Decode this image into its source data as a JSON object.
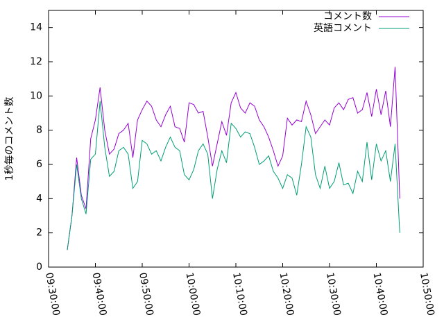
{
  "chart_data": {
    "type": "line",
    "ylabel": "1秒毎のコメント数",
    "x": [
      "09:34:00",
      "09:35:00",
      "09:36:00",
      "09:37:00",
      "09:38:00",
      "09:39:00",
      "09:40:00",
      "09:41:00",
      "09:42:00",
      "09:43:00",
      "09:44:00",
      "09:45:00",
      "09:46:00",
      "09:47:00",
      "09:48:00",
      "09:49:00",
      "09:50:00",
      "09:51:00",
      "09:52:00",
      "09:53:00",
      "09:54:00",
      "09:55:00",
      "09:56:00",
      "09:57:00",
      "09:58:00",
      "09:59:00",
      "10:00:00",
      "10:01:00",
      "10:02:00",
      "10:03:00",
      "10:04:00",
      "10:05:00",
      "10:06:00",
      "10:07:00",
      "10:08:00",
      "10:09:00",
      "10:10:00",
      "10:11:00",
      "10:12:00",
      "10:13:00",
      "10:14:00",
      "10:15:00",
      "10:16:00",
      "10:17:00",
      "10:18:00",
      "10:19:00",
      "10:20:00",
      "10:21:00",
      "10:22:00",
      "10:23:00",
      "10:24:00",
      "10:25:00",
      "10:26:00",
      "10:27:00",
      "10:28:00",
      "10:29:00",
      "10:30:00",
      "10:31:00",
      "10:32:00",
      "10:33:00",
      "10:34:00",
      "10:35:00",
      "10:36:00",
      "10:37:00",
      "10:38:00",
      "10:39:00",
      "10:40:00",
      "10:41:00",
      "10:42:00",
      "10:43:00",
      "10:44:00",
      "10:45:00"
    ],
    "series": [
      {
        "name": "コメント数",
        "color": "#9400d3",
        "values": [
          1.0,
          3.0,
          6.4,
          4.2,
          3.4,
          7.5,
          8.6,
          10.5,
          8.0,
          6.6,
          6.9,
          7.8,
          8.0,
          8.4,
          6.4,
          8.6,
          9.2,
          9.7,
          9.4,
          8.6,
          8.2,
          8.9,
          9.4,
          8.2,
          8.1,
          7.3,
          9.6,
          9.5,
          9.0,
          9.1,
          7.6,
          5.9,
          7.2,
          8.5,
          7.7,
          9.6,
          10.2,
          9.3,
          9.0,
          9.6,
          9.4,
          8.6,
          8.2,
          7.6,
          6.8,
          5.9,
          6.5,
          8.7,
          8.3,
          8.6,
          8.5,
          9.7,
          8.9,
          7.8,
          8.2,
          8.6,
          8.3,
          9.3,
          9.6,
          9.2,
          9.8,
          9.9,
          9.0,
          9.2,
          10.2,
          8.8,
          10.4,
          8.9,
          10.3,
          8.2,
          11.7,
          4.0
        ]
      },
      {
        "name": "英語コメント",
        "color": "#009e73",
        "values": [
          1.0,
          3.0,
          6.0,
          4.0,
          3.1,
          6.3,
          6.6,
          9.7,
          7.0,
          5.3,
          5.6,
          6.8,
          7.0,
          6.6,
          4.6,
          5.0,
          7.4,
          7.2,
          6.6,
          6.8,
          6.2,
          7.0,
          7.6,
          7.0,
          6.8,
          5.4,
          5.1,
          5.7,
          6.8,
          7.2,
          6.6,
          4.0,
          5.7,
          6.8,
          6.1,
          8.4,
          8.1,
          7.6,
          7.9,
          7.8,
          7.0,
          6.0,
          6.2,
          6.5,
          5.6,
          5.2,
          4.6,
          5.4,
          5.2,
          4.2,
          6.0,
          8.2,
          7.6,
          5.4,
          4.6,
          5.9,
          4.6,
          5.0,
          6.1,
          4.8,
          4.9,
          4.3,
          5.6,
          5.0,
          7.3,
          5.1,
          7.2,
          6.2,
          6.8,
          5.0,
          7.2,
          2.0
        ]
      }
    ],
    "xlim": [
      "09:30:00",
      "10:50:00"
    ],
    "xticks": [
      "09:30:00",
      "09:40:00",
      "09:50:00",
      "10:00:00",
      "10:10:00",
      "10:20:00",
      "10:30:00",
      "10:40:00",
      "10:50:00"
    ],
    "ylim": [
      0,
      15
    ],
    "yticks": [
      0,
      2,
      4,
      6,
      8,
      10,
      12,
      14
    ],
    "legend": "top-right"
  }
}
